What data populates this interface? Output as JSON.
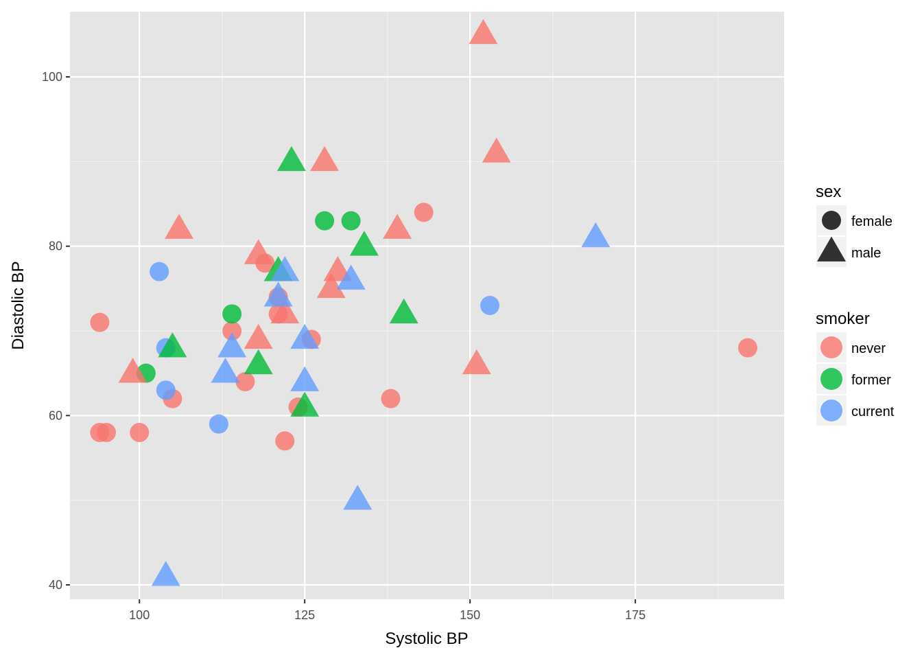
{
  "chart_data": {
    "type": "scatter",
    "xlabel": "Systolic BP",
    "ylabel": "Diastolic BP",
    "xlim": [
      89.5,
      197.5
    ],
    "ylim": [
      38.3,
      107.7
    ],
    "x_ticks": [
      100,
      125,
      150,
      175
    ],
    "y_ticks": [
      40,
      60,
      80,
      100
    ],
    "grid": true,
    "colors": {
      "never": "#F8766D",
      "former": "#00BA38",
      "current": "#619CFF"
    },
    "legend_placement": "right",
    "legends": [
      {
        "title": "sex",
        "entries": [
          {
            "label": "female",
            "shape": "circle"
          },
          {
            "label": "male",
            "shape": "triangle"
          }
        ]
      },
      {
        "title": "smoker",
        "entries": [
          {
            "label": "never",
            "color": "#F8766D"
          },
          {
            "label": "former",
            "color": "#00BA38"
          },
          {
            "label": "current",
            "color": "#619CFF"
          }
        ]
      }
    ],
    "series": [
      {
        "sex": "female",
        "smoker": "never",
        "points": [
          [
            94,
            71
          ],
          [
            94,
            58
          ],
          [
            95,
            58
          ],
          [
            100,
            58
          ],
          [
            105,
            62
          ],
          [
            114,
            70
          ],
          [
            116,
            64
          ],
          [
            119,
            78
          ],
          [
            121,
            74
          ],
          [
            121,
            72
          ],
          [
            122,
            57
          ],
          [
            124,
            61
          ],
          [
            126,
            69
          ],
          [
            138,
            62
          ],
          [
            143,
            84
          ],
          [
            192,
            68
          ]
        ]
      },
      {
        "sex": "female",
        "smoker": "former",
        "points": [
          [
            101,
            65
          ],
          [
            114,
            72
          ],
          [
            128,
            83
          ],
          [
            132,
            83
          ]
        ]
      },
      {
        "sex": "female",
        "smoker": "current",
        "points": [
          [
            103,
            77
          ],
          [
            104,
            68
          ],
          [
            104,
            63
          ],
          [
            112,
            59
          ],
          [
            153,
            73
          ]
        ]
      },
      {
        "sex": "male",
        "smoker": "never",
        "points": [
          [
            99,
            65
          ],
          [
            106,
            82
          ],
          [
            118,
            79
          ],
          [
            118,
            69
          ],
          [
            122,
            72
          ],
          [
            128,
            90
          ],
          [
            129,
            75
          ],
          [
            130,
            77
          ],
          [
            139,
            82
          ],
          [
            151,
            66
          ],
          [
            152,
            105
          ],
          [
            154,
            91
          ]
        ]
      },
      {
        "sex": "male",
        "smoker": "former",
        "points": [
          [
            105,
            68
          ],
          [
            118,
            66
          ],
          [
            121,
            77
          ],
          [
            123,
            90
          ],
          [
            125,
            61
          ],
          [
            134,
            80
          ],
          [
            140,
            72
          ]
        ]
      },
      {
        "sex": "male",
        "smoker": "current",
        "points": [
          [
            104,
            41
          ],
          [
            113,
            65
          ],
          [
            114,
            68
          ],
          [
            121,
            74
          ],
          [
            122,
            77
          ],
          [
            125,
            69
          ],
          [
            125,
            64
          ],
          [
            132,
            76
          ],
          [
            133,
            50
          ],
          [
            169,
            81
          ]
        ]
      }
    ]
  }
}
